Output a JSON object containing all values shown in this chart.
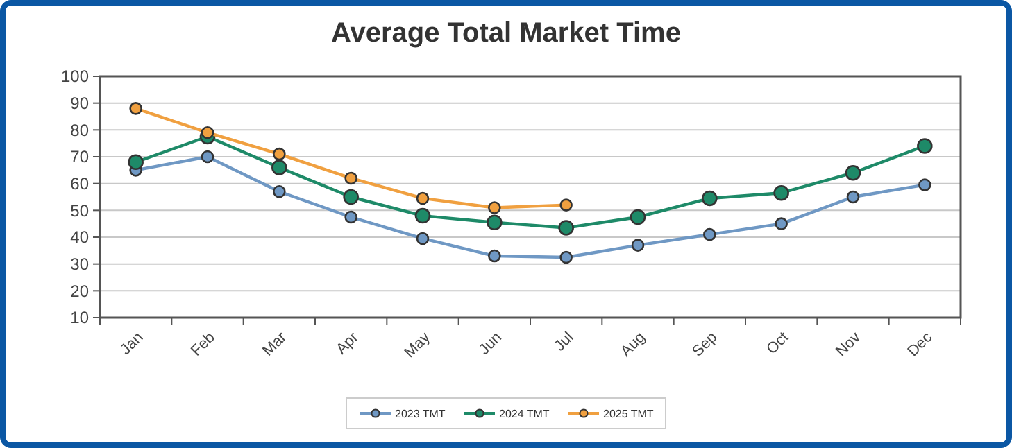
{
  "chart_data": {
    "type": "line",
    "title": "Average Total Market Time",
    "categories": [
      "Jan",
      "Feb",
      "Mar",
      "Apr",
      "May",
      "Jun",
      "Jul",
      "Aug",
      "Sep",
      "Oct",
      "Nov",
      "Dec"
    ],
    "series": [
      {
        "name": "2023 TMT",
        "color": "#6f98c4",
        "values": [
          65,
          70,
          57,
          47.5,
          39.5,
          33,
          32.5,
          37,
          41,
          45,
          55,
          59.5
        ]
      },
      {
        "name": "2024 TMT",
        "color": "#1e8a68",
        "values": [
          68,
          77.5,
          66,
          55,
          48,
          45.5,
          43.5,
          47.5,
          54.5,
          56.5,
          64,
          74
        ]
      },
      {
        "name": "2025 TMT",
        "color": "#f0a040",
        "values": [
          88,
          79,
          71,
          62,
          54.5,
          51,
          52,
          null,
          null,
          null,
          null,
          null
        ]
      }
    ],
    "ylim": [
      10,
      100
    ],
    "yticks": [
      10,
      20,
      30,
      40,
      50,
      60,
      70,
      80,
      90,
      100
    ],
    "grid": "y",
    "legend": "bottom",
    "marker": "circle",
    "line_style": "solid"
  }
}
